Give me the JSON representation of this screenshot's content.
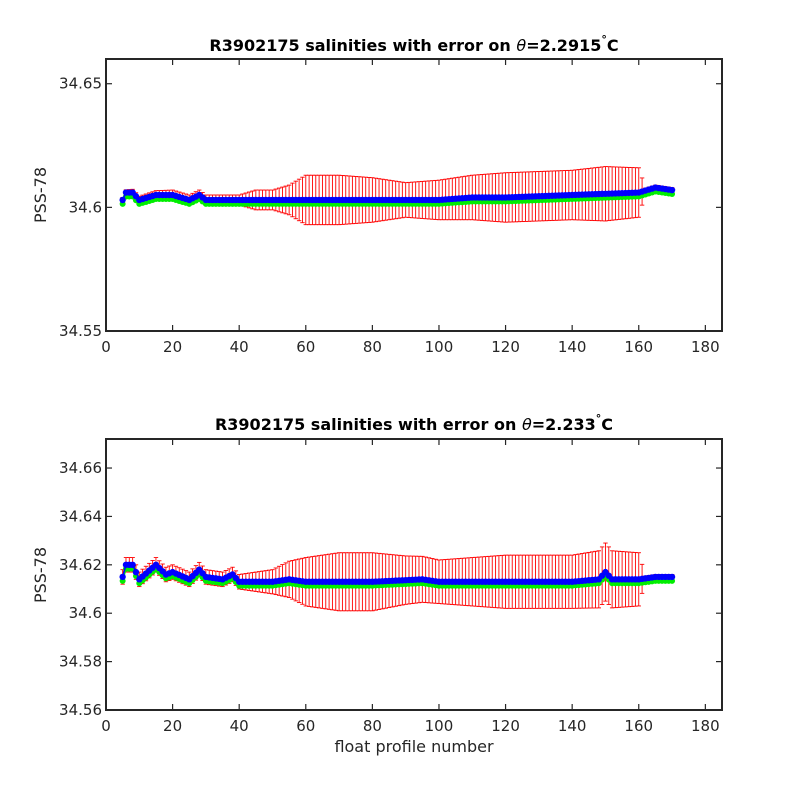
{
  "chart_data": [
    {
      "type": "scatter",
      "title_prefix": "R3902175 salinities with error on ",
      "title_theta": "θ",
      "title_value": "=2.2915",
      "title_unit_deg": "°",
      "title_unit": "C",
      "xlabel": "",
      "ylabel": "PSS-78",
      "xlim": [
        0,
        185
      ],
      "ylim": [
        34.55,
        34.66
      ],
      "xticks": [
        0,
        20,
        40,
        60,
        80,
        100,
        120,
        140,
        160,
        180
      ],
      "yticks": [
        34.55,
        34.6,
        34.65
      ],
      "ytick_labels": [
        "34.55",
        "34.6",
        "34.65"
      ],
      "grid": false,
      "error_color": "#ff0000",
      "primary_color": "#0000ff",
      "secondary_color": "#00ee00",
      "x_range": [
        5,
        170
      ],
      "salinity_anchors": [
        [
          5,
          34.603
        ],
        [
          6,
          34.606
        ],
        [
          8,
          34.606
        ],
        [
          10,
          34.603
        ],
        [
          15,
          34.605
        ],
        [
          20,
          34.605
        ],
        [
          25,
          34.603
        ],
        [
          28,
          34.605
        ],
        [
          30,
          34.603
        ],
        [
          40,
          34.603
        ],
        [
          50,
          34.603
        ],
        [
          60,
          34.603
        ],
        [
          80,
          34.603
        ],
        [
          95,
          34.603
        ],
        [
          100,
          34.603
        ],
        [
          110,
          34.604
        ],
        [
          120,
          34.604
        ],
        [
          140,
          34.605
        ],
        [
          160,
          34.606
        ],
        [
          165,
          34.608
        ],
        [
          170,
          34.607
        ]
      ],
      "error_anchors": [
        [
          5,
          0.001
        ],
        [
          10,
          0.0015
        ],
        [
          20,
          0.002
        ],
        [
          30,
          0.002
        ],
        [
          40,
          0.002
        ],
        [
          45,
          0.004
        ],
        [
          50,
          0.004
        ],
        [
          55,
          0.006
        ],
        [
          60,
          0.01
        ],
        [
          70,
          0.01
        ],
        [
          80,
          0.009
        ],
        [
          90,
          0.007
        ],
        [
          100,
          0.008
        ],
        [
          110,
          0.009
        ],
        [
          120,
          0.01
        ],
        [
          140,
          0.01
        ],
        [
          150,
          0.011
        ],
        [
          160,
          0.01
        ],
        [
          162,
          0.001
        ],
        [
          170,
          0.001
        ]
      ]
    },
    {
      "type": "scatter",
      "title_prefix": "R3902175 salinities with error on ",
      "title_theta": "θ",
      "title_value": "=2.233",
      "title_unit_deg": "°",
      "title_unit": "C",
      "xlabel": "float profile number",
      "ylabel": "PSS-78",
      "xlim": [
        0,
        185
      ],
      "ylim": [
        34.56,
        34.672
      ],
      "xticks": [
        0,
        20,
        40,
        60,
        80,
        100,
        120,
        140,
        160,
        180
      ],
      "yticks": [
        34.56,
        34.58,
        34.6,
        34.62,
        34.64,
        34.66
      ],
      "ytick_labels": [
        "34.56",
        "34.58",
        "34.6",
        "34.62",
        "34.64",
        "34.66"
      ],
      "grid": false,
      "error_color": "#ff0000",
      "primary_color": "#0000ff",
      "secondary_color": "#00ee00",
      "x_range": [
        5,
        170
      ],
      "salinity_anchors": [
        [
          5,
          34.615
        ],
        [
          6,
          34.62
        ],
        [
          8,
          34.62
        ],
        [
          10,
          34.614
        ],
        [
          15,
          34.62
        ],
        [
          18,
          34.616
        ],
        [
          20,
          34.617
        ],
        [
          25,
          34.614
        ],
        [
          28,
          34.618
        ],
        [
          30,
          34.615
        ],
        [
          35,
          34.614
        ],
        [
          38,
          34.616
        ],
        [
          40,
          34.613
        ],
        [
          50,
          34.613
        ],
        [
          55,
          34.614
        ],
        [
          60,
          34.613
        ],
        [
          80,
          34.613
        ],
        [
          95,
          34.614
        ],
        [
          100,
          34.613
        ],
        [
          110,
          34.613
        ],
        [
          120,
          34.613
        ],
        [
          140,
          34.613
        ],
        [
          148,
          34.614
        ],
        [
          150,
          34.617
        ],
        [
          152,
          34.614
        ],
        [
          160,
          34.614
        ],
        [
          165,
          34.615
        ],
        [
          170,
          34.615
        ]
      ],
      "error_anchors": [
        [
          5,
          0.003
        ],
        [
          15,
          0.003
        ],
        [
          25,
          0.003
        ],
        [
          40,
          0.003
        ],
        [
          50,
          0.005
        ],
        [
          60,
          0.01
        ],
        [
          70,
          0.012
        ],
        [
          80,
          0.012
        ],
        [
          90,
          0.01
        ],
        [
          100,
          0.009
        ],
        [
          110,
          0.01
        ],
        [
          120,
          0.011
        ],
        [
          140,
          0.011
        ],
        [
          150,
          0.012
        ],
        [
          160,
          0.011
        ],
        [
          162,
          0.001
        ],
        [
          170,
          0.001
        ]
      ]
    }
  ]
}
